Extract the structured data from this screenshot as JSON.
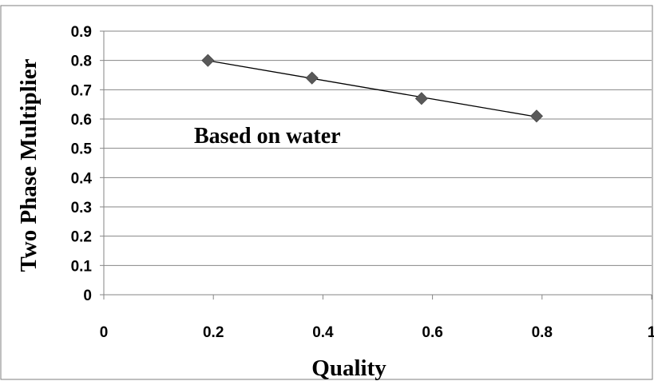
{
  "chart_data": {
    "type": "scatter",
    "title": "",
    "xlabel": "Quality",
    "ylabel": "Two Phase Multiplier",
    "xlim": [
      0,
      1
    ],
    "ylim": [
      0,
      0.9
    ],
    "xticks": [
      "0",
      "0.2",
      "0.4",
      "0.6",
      "0.8",
      "1"
    ],
    "yticks": [
      "0",
      "0.1",
      "0.2",
      "0.3",
      "0.4",
      "0.5",
      "0.6",
      "0.7",
      "0.8",
      "0.9"
    ],
    "grid": "horizontal",
    "legend": "none",
    "series": [
      {
        "marker": "diamond",
        "color": "#595959",
        "x": [
          0.19,
          0.38,
          0.58,
          0.79
        ],
        "y": [
          0.8,
          0.74,
          0.67,
          0.61
        ]
      }
    ],
    "trendline": {
      "type": "linear",
      "color": "#000000"
    },
    "annotation": "Based on water"
  }
}
